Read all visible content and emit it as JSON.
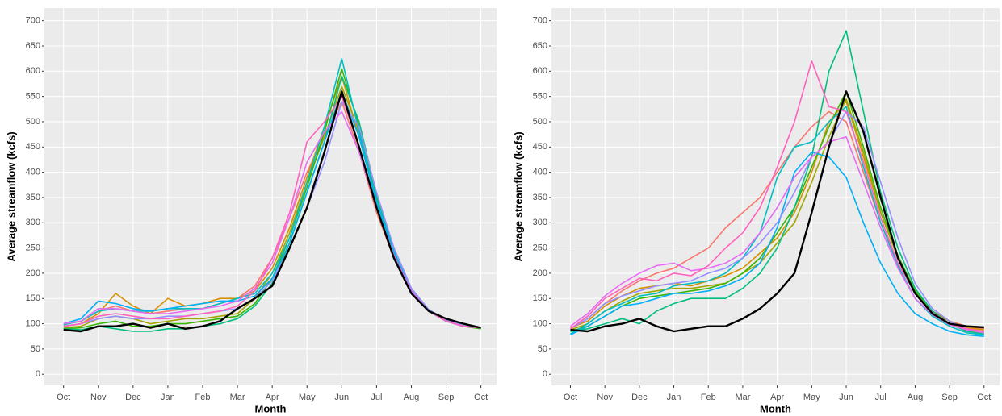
{
  "chart_data": [
    {
      "type": "line",
      "x_label": "Month",
      "y_label": "Average streamflow (kcfs)",
      "grid": true,
      "x": [
        0,
        0.5,
        1,
        1.5,
        2,
        2.5,
        3,
        3.5,
        4,
        4.5,
        5,
        5.5,
        6,
        6.5,
        7,
        7.5,
        8,
        8.5,
        9,
        9.5,
        10,
        10.5,
        11,
        11.5,
        12
      ],
      "xlim": [
        -0.55,
        12.45
      ],
      "xticks": [
        {
          "value": 0,
          "label": "Oct"
        },
        {
          "value": 1,
          "label": "Nov"
        },
        {
          "value": 2,
          "label": "Dec"
        },
        {
          "value": 3,
          "label": "Jan"
        },
        {
          "value": 4,
          "label": "Feb"
        },
        {
          "value": 5,
          "label": "Mar"
        },
        {
          "value": 6,
          "label": "Apr"
        },
        {
          "value": 7,
          "label": "May"
        },
        {
          "value": 8,
          "label": "Jun"
        },
        {
          "value": 9,
          "label": "Jul"
        },
        {
          "value": 10,
          "label": "Aug"
        },
        {
          "value": 11,
          "label": "Sep"
        },
        {
          "value": 12,
          "label": "Oct"
        }
      ],
      "ylim": [
        -22,
        725
      ],
      "yticks": [
        0,
        50,
        100,
        150,
        200,
        250,
        300,
        350,
        400,
        450,
        500,
        550,
        600,
        650,
        700
      ],
      "series": [
        {
          "color": "#F8766D",
          "values": [
            100,
            105,
            125,
            135,
            125,
            120,
            125,
            130,
            130,
            140,
            150,
            175,
            230,
            310,
            400,
            470,
            540,
            440,
            320,
            230,
            160,
            125,
            105,
            95,
            92
          ]
        },
        {
          "color": "#D89000",
          "values": [
            95,
            100,
            120,
            160,
            135,
            120,
            150,
            135,
            140,
            150,
            150,
            165,
            210,
            290,
            390,
            490,
            590,
            470,
            340,
            240,
            165,
            125,
            105,
            95,
            93
          ]
        },
        {
          "color": "#A3A500",
          "values": [
            92,
            95,
            110,
            115,
            110,
            100,
            105,
            110,
            110,
            115,
            120,
            150,
            200,
            280,
            380,
            470,
            570,
            480,
            345,
            245,
            165,
            125,
            105,
            95,
            92
          ]
        },
        {
          "color": "#39B600",
          "values": [
            90,
            92,
            100,
            105,
            95,
            95,
            100,
            100,
            105,
            110,
            115,
            140,
            190,
            270,
            370,
            480,
            605,
            490,
            350,
            245,
            165,
            125,
            105,
            95,
            90
          ]
        },
        {
          "color": "#00BF7D",
          "values": [
            90,
            88,
            95,
            90,
            85,
            85,
            90,
            90,
            95,
            100,
            110,
            135,
            180,
            260,
            360,
            460,
            590,
            500,
            355,
            250,
            170,
            128,
            108,
            96,
            92
          ]
        },
        {
          "color": "#00BFC4",
          "values": [
            98,
            105,
            125,
            130,
            125,
            125,
            130,
            130,
            130,
            140,
            150,
            160,
            200,
            270,
            380,
            490,
            625,
            480,
            345,
            245,
            165,
            125,
            105,
            95,
            92
          ]
        },
        {
          "color": "#00B0F6",
          "values": [
            100,
            110,
            145,
            140,
            130,
            125,
            130,
            135,
            140,
            145,
            145,
            155,
            190,
            260,
            360,
            460,
            560,
            470,
            340,
            240,
            165,
            125,
            105,
            95,
            92
          ]
        },
        {
          "color": "#9590FF",
          "values": [
            95,
            100,
            110,
            115,
            110,
            110,
            115,
            115,
            120,
            125,
            130,
            150,
            185,
            250,
            330,
            420,
            540,
            490,
            360,
            250,
            170,
            128,
            108,
            96,
            92
          ]
        },
        {
          "color": "#E76BF3",
          "values": [
            100,
            105,
            130,
            130,
            125,
            120,
            120,
            125,
            130,
            135,
            145,
            170,
            220,
            310,
            420,
            480,
            520,
            440,
            330,
            235,
            165,
            125,
            105,
            95,
            92
          ]
        },
        {
          "color": "#FF62BC",
          "values": [
            95,
            100,
            115,
            120,
            115,
            110,
            110,
            115,
            120,
            125,
            135,
            165,
            230,
            320,
            460,
            500,
            550,
            450,
            330,
            235,
            160,
            125,
            105,
            95,
            92
          ]
        },
        {
          "color": "#000000",
          "values": [
            88,
            85,
            95,
            95,
            100,
            92,
            100,
            90,
            95,
            105,
            130,
            150,
            175,
            250,
            330,
            440,
            560,
            450,
            330,
            230,
            160,
            125,
            110,
            100,
            92
          ]
        }
      ]
    },
    {
      "type": "line",
      "x_label": "Month",
      "y_label": "Average streamflow (kcfs)",
      "grid": true,
      "x": [
        0,
        0.5,
        1,
        1.5,
        2,
        2.5,
        3,
        3.5,
        4,
        4.5,
        5,
        5.5,
        6,
        6.5,
        7,
        7.5,
        8,
        8.5,
        9,
        9.5,
        10,
        10.5,
        11,
        11.5,
        12
      ],
      "xlim": [
        -0.55,
        12.45
      ],
      "xticks": [
        {
          "value": 0,
          "label": "Oct"
        },
        {
          "value": 1,
          "label": "Nov"
        },
        {
          "value": 2,
          "label": "Dec"
        },
        {
          "value": 3,
          "label": "Jan"
        },
        {
          "value": 4,
          "label": "Feb"
        },
        {
          "value": 5,
          "label": "Mar"
        },
        {
          "value": 6,
          "label": "Apr"
        },
        {
          "value": 7,
          "label": "May"
        },
        {
          "value": 8,
          "label": "Jun"
        },
        {
          "value": 9,
          "label": "Jul"
        },
        {
          "value": 10,
          "label": "Aug"
        },
        {
          "value": 11,
          "label": "Sep"
        },
        {
          "value": 12,
          "label": "Oct"
        }
      ],
      "ylim": [
        -22,
        725
      ],
      "yticks": [
        0,
        50,
        100,
        150,
        200,
        250,
        300,
        350,
        400,
        450,
        500,
        550,
        600,
        650,
        700
      ],
      "series": [
        {
          "color": "#F8766D",
          "values": [
            90,
            110,
            140,
            165,
            185,
            200,
            210,
            230,
            250,
            290,
            320,
            350,
            400,
            450,
            490,
            520,
            500,
            400,
            300,
            220,
            160,
            125,
            105,
            95,
            90
          ]
        },
        {
          "color": "#D89000",
          "values": [
            92,
            105,
            135,
            155,
            170,
            175,
            180,
            175,
            185,
            195,
            210,
            240,
            270,
            320,
            400,
            500,
            540,
            430,
            320,
            230,
            160,
            125,
            105,
            92,
            88
          ]
        },
        {
          "color": "#A3A500",
          "values": [
            88,
            100,
            125,
            145,
            160,
            165,
            170,
            170,
            175,
            180,
            200,
            220,
            260,
            300,
            380,
            470,
            545,
            440,
            320,
            230,
            165,
            125,
            100,
            90,
            85
          ]
        },
        {
          "color": "#39B600",
          "values": [
            85,
            95,
            115,
            135,
            150,
            155,
            160,
            165,
            170,
            180,
            200,
            230,
            280,
            330,
            410,
            490,
            560,
            450,
            330,
            235,
            165,
            125,
            100,
            88,
            82
          ]
        },
        {
          "color": "#00BF7D",
          "values": [
            85,
            90,
            100,
            110,
            100,
            125,
            140,
            150,
            150,
            150,
            170,
            200,
            250,
            330,
            430,
            600,
            680,
            520,
            360,
            250,
            170,
            125,
            100,
            85,
            80
          ]
        },
        {
          "color": "#00BFC4",
          "values": [
            80,
            100,
            125,
            140,
            155,
            160,
            175,
            180,
            185,
            200,
            230,
            280,
            390,
            450,
            460,
            500,
            530,
            410,
            300,
            215,
            150,
            115,
            95,
            82,
            78
          ]
        },
        {
          "color": "#00B0F6",
          "values": [
            78,
            95,
            115,
            135,
            140,
            150,
            160,
            160,
            165,
            175,
            190,
            220,
            290,
            400,
            440,
            430,
            390,
            300,
            220,
            160,
            120,
            100,
            85,
            78,
            75
          ]
        },
        {
          "color": "#9590FF",
          "values": [
            90,
            110,
            140,
            155,
            165,
            175,
            180,
            185,
            200,
            210,
            230,
            260,
            300,
            360,
            430,
            460,
            520,
            490,
            380,
            270,
            180,
            130,
            105,
            90,
            85
          ]
        },
        {
          "color": "#E76BF3",
          "values": [
            95,
            120,
            155,
            180,
            200,
            215,
            220,
            205,
            210,
            220,
            240,
            280,
            330,
            390,
            430,
            460,
            470,
            380,
            290,
            210,
            150,
            118,
            98,
            88,
            82
          ]
        },
        {
          "color": "#FF62BC",
          "values": [
            90,
            115,
            150,
            170,
            190,
            185,
            200,
            195,
            215,
            250,
            280,
            330,
            410,
            500,
            620,
            530,
            520,
            420,
            310,
            220,
            160,
            122,
            100,
            90,
            85
          ]
        },
        {
          "color": "#000000",
          "values": [
            88,
            85,
            95,
            100,
            110,
            95,
            85,
            90,
            95,
            95,
            110,
            130,
            160,
            200,
            320,
            450,
            560,
            480,
            350,
            230,
            160,
            120,
            100,
            95,
            93
          ]
        }
      ]
    }
  ]
}
